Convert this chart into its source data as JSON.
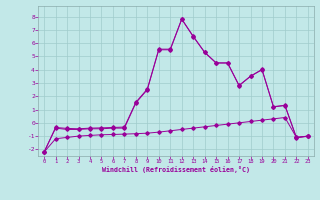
{
  "title": "",
  "xlabel": "Windchill (Refroidissement éolien,°C)",
  "ylabel": "",
  "xlim": [
    -0.5,
    23.5
  ],
  "ylim": [
    -2.5,
    8.8
  ],
  "yticks": [
    -2,
    -1,
    0,
    1,
    2,
    3,
    4,
    5,
    6,
    7,
    8
  ],
  "xticks": [
    0,
    1,
    2,
    3,
    4,
    5,
    6,
    7,
    8,
    9,
    10,
    11,
    12,
    13,
    14,
    15,
    16,
    17,
    18,
    19,
    20,
    21,
    22,
    23
  ],
  "background_color": "#c2e8e8",
  "line_color": "#990099",
  "grid_color": "#a0cccc",
  "series": [
    {
      "x": [
        0,
        1,
        2,
        3,
        4,
        5,
        6,
        7,
        8,
        9,
        10,
        11,
        12,
        13,
        14,
        15,
        16,
        17,
        18,
        19,
        20,
        21,
        22,
        23
      ],
      "y": [
        -2.2,
        -1.2,
        -1.1,
        -1.0,
        -0.95,
        -0.9,
        -0.88,
        -0.85,
        -0.82,
        -0.78,
        -0.7,
        -0.6,
        -0.5,
        -0.4,
        -0.3,
        -0.2,
        -0.1,
        0.0,
        0.1,
        0.2,
        0.3,
        0.4,
        -1.1,
        -1.0
      ]
    },
    {
      "x": [
        0,
        1,
        2,
        3,
        4,
        5,
        6,
        7,
        8,
        9,
        10,
        11,
        12,
        13,
        14,
        15,
        16,
        17,
        18,
        19,
        20,
        21,
        22,
        23
      ],
      "y": [
        -2.2,
        -0.4,
        -0.5,
        -0.5,
        -0.45,
        -0.45,
        -0.4,
        -0.4,
        1.5,
        2.5,
        5.5,
        5.5,
        7.8,
        6.5,
        5.3,
        4.5,
        4.5,
        2.8,
        3.5,
        4.0,
        1.2,
        1.3,
        -1.1,
        -1.0
      ]
    },
    {
      "x": [
        0,
        1,
        2,
        3,
        4,
        5,
        6,
        7,
        8,
        9,
        10,
        11,
        12,
        13,
        14,
        15,
        16,
        17,
        18,
        19,
        20,
        21,
        22,
        23
      ],
      "y": [
        -2.2,
        -0.35,
        -0.42,
        -0.45,
        -0.4,
        -0.38,
        -0.35,
        -0.32,
        1.55,
        2.55,
        5.55,
        5.55,
        7.82,
        6.52,
        5.32,
        4.52,
        4.52,
        2.82,
        3.52,
        4.02,
        1.22,
        1.32,
        -1.12,
        -1.02
      ]
    }
  ]
}
